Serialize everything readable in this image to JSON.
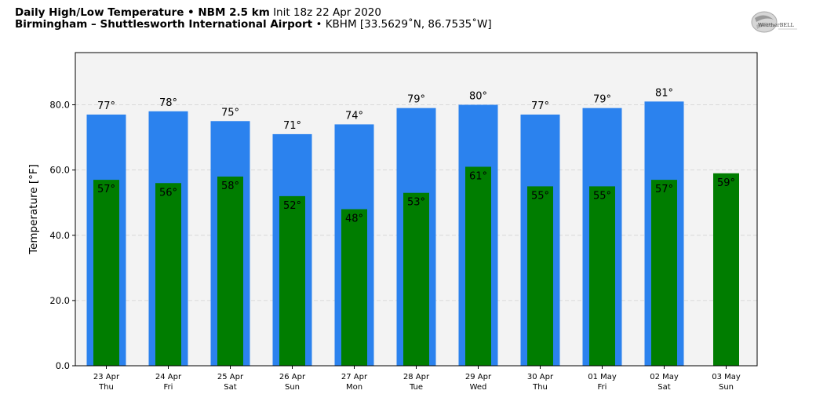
{
  "header": {
    "title_bold": "Daily High/Low Temperature • NBM 2.5 km",
    "title_rest": "Init 18z 22 Apr 2020",
    "location_bold": "Birmingham – Shuttlesworth International Airport",
    "location_rest": "• KBHM [33.5629˚N, 86.7535˚W]"
  },
  "logo": {
    "text": "WeatherBELL"
  },
  "colors": {
    "high": "#2b82ee",
    "low": "#007d00",
    "plot_bg": "#f3f3f3",
    "grid": "#d0d0d0"
  },
  "chart_data": {
    "type": "bar",
    "ylabel": "Temperature [°F]",
    "ylim": [
      0,
      96
    ],
    "yticks": [
      0,
      20,
      40,
      60,
      80
    ],
    "ytick_labels": [
      "0.0",
      "20.0",
      "40.0",
      "60.0",
      "80.0"
    ],
    "grid": true,
    "categories": [
      [
        "23 Apr",
        "Thu"
      ],
      [
        "24 Apr",
        "Fri"
      ],
      [
        "25 Apr",
        "Sat"
      ],
      [
        "26 Apr",
        "Sun"
      ],
      [
        "27 Apr",
        "Mon"
      ],
      [
        "28 Apr",
        "Tue"
      ],
      [
        "29 Apr",
        "Wed"
      ],
      [
        "30 Apr",
        "Thu"
      ],
      [
        "01 May",
        "Fri"
      ],
      [
        "02 May",
        "Sat"
      ],
      [
        "03 May",
        "Sun"
      ]
    ],
    "series": [
      {
        "key": "high",
        "values": [
          77,
          78,
          75,
          71,
          74,
          79,
          80,
          77,
          79,
          81,
          null
        ]
      },
      {
        "key": "low",
        "values": [
          57,
          56,
          58,
          52,
          48,
          53,
          61,
          55,
          55,
          57,
          59
        ]
      }
    ],
    "value_suffix": "°"
  }
}
